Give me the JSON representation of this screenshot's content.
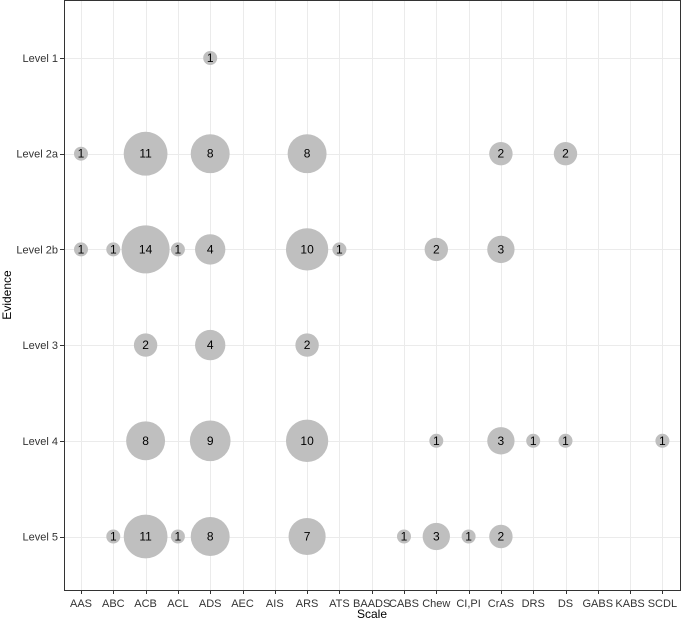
{
  "chart_data": {
    "type": "scatter",
    "xlabel": "Scale",
    "ylabel": "Evidence",
    "categories": [
      "AAS",
      "ABC",
      "ACB",
      "ACL",
      "ADS",
      "AEC",
      "AIS",
      "ARS",
      "ATS",
      "BAADS",
      "CABS",
      "Chew",
      "CI,PI",
      "CrAS",
      "DRS",
      "DS",
      "GABS",
      "KABS",
      "SCDL"
    ],
    "levels": [
      "Level 1",
      "Level 2a",
      "Level 2b",
      "Level 3",
      "Level 4",
      "Level 5"
    ],
    "grid": true,
    "legend": "none",
    "colors": {
      "bubble": "#bfbfbf",
      "grid": "#ebebeb",
      "border": "#333333"
    },
    "points": [
      {
        "x": "ADS",
        "y": "Level 1",
        "value": 1
      },
      {
        "x": "AAS",
        "y": "Level 2a",
        "value": 1
      },
      {
        "x": "ACB",
        "y": "Level 2a",
        "value": 11
      },
      {
        "x": "ADS",
        "y": "Level 2a",
        "value": 8
      },
      {
        "x": "ARS",
        "y": "Level 2a",
        "value": 8
      },
      {
        "x": "CrAS",
        "y": "Level 2a",
        "value": 2
      },
      {
        "x": "DS",
        "y": "Level 2a",
        "value": 2
      },
      {
        "x": "AAS",
        "y": "Level 2b",
        "value": 1
      },
      {
        "x": "ABC",
        "y": "Level 2b",
        "value": 1
      },
      {
        "x": "ACB",
        "y": "Level 2b",
        "value": 14
      },
      {
        "x": "ACL",
        "y": "Level 2b",
        "value": 1
      },
      {
        "x": "ADS",
        "y": "Level 2b",
        "value": 4
      },
      {
        "x": "ARS",
        "y": "Level 2b",
        "value": 10
      },
      {
        "x": "ATS",
        "y": "Level 2b",
        "value": 1
      },
      {
        "x": "Chew",
        "y": "Level 2b",
        "value": 2
      },
      {
        "x": "CrAS",
        "y": "Level 2b",
        "value": 3
      },
      {
        "x": "ACB",
        "y": "Level 3",
        "value": 2
      },
      {
        "x": "ADS",
        "y": "Level 3",
        "value": 4
      },
      {
        "x": "ARS",
        "y": "Level 3",
        "value": 2
      },
      {
        "x": "ACB",
        "y": "Level 4",
        "value": 8
      },
      {
        "x": "ADS",
        "y": "Level 4",
        "value": 9
      },
      {
        "x": "ARS",
        "y": "Level 4",
        "value": 10
      },
      {
        "x": "Chew",
        "y": "Level 4",
        "value": 1
      },
      {
        "x": "CrAS",
        "y": "Level 4",
        "value": 3
      },
      {
        "x": "DRS",
        "y": "Level 4",
        "value": 1
      },
      {
        "x": "DS",
        "y": "Level 4",
        "value": 1
      },
      {
        "x": "SCDL",
        "y": "Level 4",
        "value": 1
      },
      {
        "x": "ABC",
        "y": "Level 5",
        "value": 1
      },
      {
        "x": "ACB",
        "y": "Level 5",
        "value": 11
      },
      {
        "x": "ACL",
        "y": "Level 5",
        "value": 1
      },
      {
        "x": "ADS",
        "y": "Level 5",
        "value": 8
      },
      {
        "x": "ARS",
        "y": "Level 5",
        "value": 7
      },
      {
        "x": "CABS",
        "y": "Level 5",
        "value": 1
      },
      {
        "x": "Chew",
        "y": "Level 5",
        "value": 3
      },
      {
        "x": "CI,PI",
        "y": "Level 5",
        "value": 1
      },
      {
        "x": "CrAS",
        "y": "Level 5",
        "value": 2
      }
    ]
  }
}
